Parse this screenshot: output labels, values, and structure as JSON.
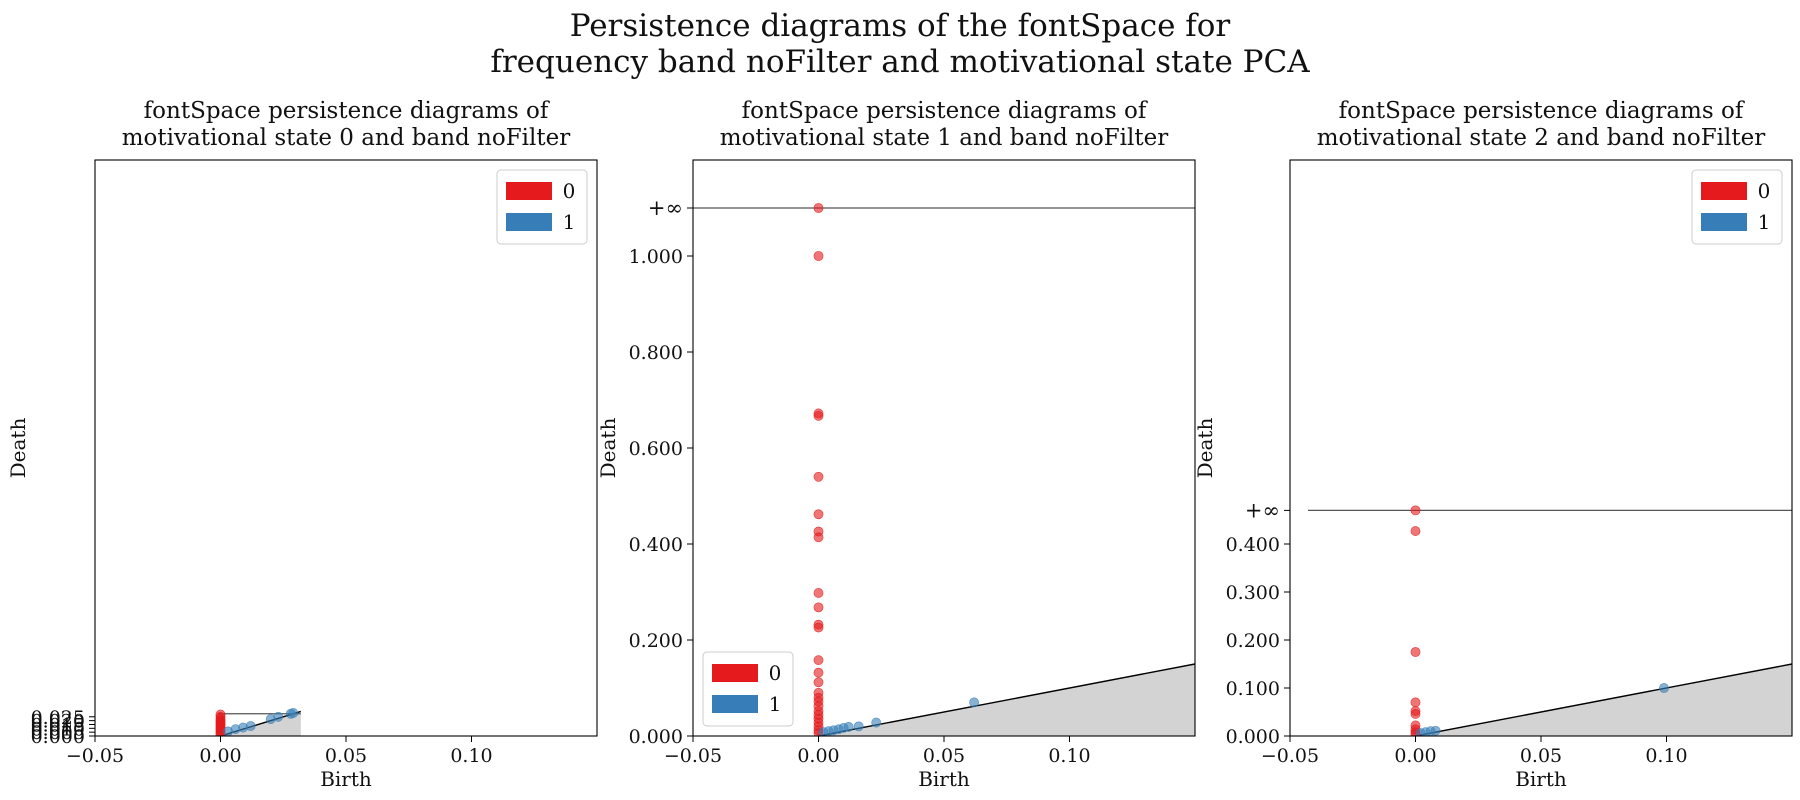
{
  "figure": {
    "title_line1": "Persistence diagrams of the fontSpace for",
    "title_line2": "frequency band noFilter and motivational state PCA"
  },
  "chart_data": [
    {
      "type": "scatter",
      "title_line1": "fontSpace persistence diagrams of",
      "title_line2": "motivational state 0 and band noFilter",
      "xlabel": "Birth",
      "ylabel": "Death",
      "xlim": [
        -0.05,
        0.15
      ],
      "xticks": [
        -0.05,
        0.0,
        0.05,
        0.1
      ],
      "xtick_labels": [
        "−0.05",
        "0.00",
        "0.05",
        "0.10"
      ],
      "ylim": [
        0.0,
        0.75
      ],
      "yticks": [
        0.0,
        0.005,
        0.01,
        0.015,
        0.02,
        0.025
      ],
      "ytick_labels": [
        "0.000",
        "0.005",
        "0.010",
        "0.015",
        "0.020",
        "0.025"
      ],
      "diag_max": 0.032,
      "inf_line": 0.029,
      "inf_label": "",
      "legend": {
        "position": "top-right",
        "entries": [
          "0",
          "1"
        ]
      },
      "series": [
        {
          "name": "0",
          "color": "#e41a1c",
          "points": [
            [
              0,
              0.028
            ],
            [
              0,
              0.025
            ],
            [
              0,
              0.022
            ],
            [
              0,
              0.02
            ],
            [
              0,
              0.018
            ],
            [
              0,
              0.016
            ],
            [
              0,
              0.014
            ],
            [
              0,
              0.012
            ],
            [
              0,
              0.01
            ],
            [
              0,
              0.008
            ],
            [
              0,
              0.006
            ],
            [
              0,
              0.004
            ],
            [
              0,
              0.002
            ]
          ]
        },
        {
          "name": "1",
          "color": "#377eb8",
          "points": [
            [
              0.003,
              0.006
            ],
            [
              0.006,
              0.009
            ],
            [
              0.009,
              0.011
            ],
            [
              0.012,
              0.013
            ],
            [
              0.02,
              0.022
            ],
            [
              0.023,
              0.025
            ],
            [
              0.028,
              0.029
            ],
            [
              0.029,
              0.03
            ]
          ]
        }
      ]
    },
    {
      "type": "scatter",
      "title_line1": "fontSpace persistence diagrams of",
      "title_line2": "motivational state 1 and band noFilter",
      "xlabel": "Birth",
      "ylabel": "Death",
      "xlim": [
        -0.05,
        0.15
      ],
      "xticks": [
        -0.05,
        0.0,
        0.05,
        0.1
      ],
      "xtick_labels": [
        "−0.05",
        "0.00",
        "0.05",
        "0.10"
      ],
      "ylim": [
        0.0,
        1.2
      ],
      "yticks": [
        0.0,
        0.2,
        0.4,
        0.6,
        0.8,
        1.0
      ],
      "ytick_labels": [
        "0.000",
        "0.200",
        "0.400",
        "0.600",
        "0.800",
        "1.000"
      ],
      "diag_max": 0.15,
      "inf_line": 1.1,
      "inf_label": "+∞",
      "legend": {
        "position": "bottom-left",
        "entries": [
          "0",
          "1"
        ]
      },
      "series": [
        {
          "name": "0",
          "color": "#e41a1c",
          "points": [
            [
              0,
              1.1
            ],
            [
              0,
              1.0
            ],
            [
              0,
              0.672
            ],
            [
              0,
              0.667
            ],
            [
              0,
              0.54
            ],
            [
              0,
              0.462
            ],
            [
              0,
              0.426
            ],
            [
              0,
              0.414
            ],
            [
              0,
              0.298
            ],
            [
              0,
              0.268
            ],
            [
              0,
              0.232
            ],
            [
              0,
              0.226
            ],
            [
              0,
              0.158
            ],
            [
              0,
              0.132
            ],
            [
              0,
              0.112
            ],
            [
              0,
              0.09
            ],
            [
              0,
              0.08
            ],
            [
              0,
              0.072
            ],
            [
              0,
              0.062
            ],
            [
              0,
              0.052
            ],
            [
              0,
              0.044
            ],
            [
              0,
              0.036
            ],
            [
              0,
              0.028
            ],
            [
              0,
              0.02
            ],
            [
              0,
              0.012
            ],
            [
              0,
              0.006
            ]
          ]
        },
        {
          "name": "1",
          "color": "#377eb8",
          "points": [
            [
              0.002,
              0.008
            ],
            [
              0.004,
              0.01
            ],
            [
              0.006,
              0.012
            ],
            [
              0.008,
              0.014
            ],
            [
              0.01,
              0.017
            ],
            [
              0.012,
              0.019
            ],
            [
              0.016,
              0.02
            ],
            [
              0.023,
              0.028
            ],
            [
              0.062,
              0.07
            ]
          ]
        }
      ]
    },
    {
      "type": "scatter",
      "title_line1": "fontSpace persistence diagrams of",
      "title_line2": "motivational state 2 and band noFilter",
      "xlabel": "Birth",
      "ylabel": "Death",
      "xlim": [
        -0.05,
        0.15
      ],
      "xticks": [
        -0.05,
        0.0,
        0.05,
        0.1
      ],
      "xtick_labels": [
        "−0.05",
        "0.00",
        "0.05",
        "0.10"
      ],
      "ylim": [
        0.0,
        1.2
      ],
      "yticks": [
        0.0,
        0.1,
        0.2,
        0.3,
        0.4
      ],
      "ytick_labels": [
        "0.000",
        "0.100",
        "0.200",
        "0.300",
        "0.400"
      ],
      "diag_max": 0.15,
      "inf_line": 0.47,
      "inf_label": "+∞",
      "legend": {
        "position": "top-right",
        "entries": [
          "0",
          "1"
        ]
      },
      "series": [
        {
          "name": "0",
          "color": "#e41a1c",
          "points": [
            [
              0,
              0.47
            ],
            [
              0,
              0.427
            ],
            [
              0,
              0.175
            ],
            [
              0,
              0.07
            ],
            [
              0,
              0.052
            ],
            [
              0,
              0.046
            ],
            [
              0,
              0.022
            ],
            [
              0,
              0.014
            ],
            [
              0,
              0.008
            ],
            [
              0,
              0.004
            ]
          ]
        },
        {
          "name": "1",
          "color": "#377eb8",
          "points": [
            [
              0.002,
              0.006
            ],
            [
              0.004,
              0.008
            ],
            [
              0.006,
              0.01
            ],
            [
              0.008,
              0.011
            ],
            [
              0.099,
              0.1
            ]
          ]
        }
      ]
    }
  ]
}
